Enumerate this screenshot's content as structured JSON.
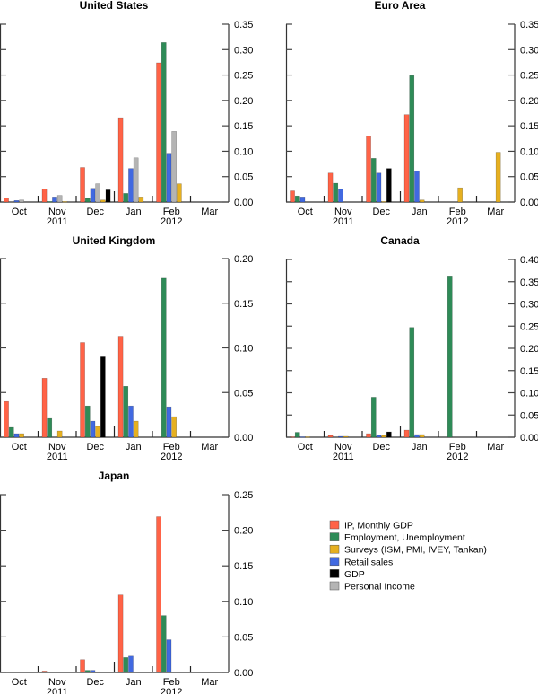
{
  "colors": {
    "ip": "#ff6347",
    "employment": "#2e8b57",
    "surveys": "#e6b020",
    "retail": "#4169e1",
    "gdp": "#000000",
    "income": "#b4b4b4"
  },
  "legend": [
    {
      "key": "ip",
      "label": "IP, Monthly GDP"
    },
    {
      "key": "employment",
      "label": "Employment, Unemployment"
    },
    {
      "key": "surveys",
      "label": "Surveys (ISM, PMI, IVEY, Tankan)"
    },
    {
      "key": "retail",
      "label": "Retail sales"
    },
    {
      "key": "gdp",
      "label": "GDP"
    },
    {
      "key": "income",
      "label": "Personal Income"
    }
  ],
  "chart_data": [
    {
      "type": "bar",
      "title": "United States",
      "categories": [
        "Oct",
        "Nov",
        "Dec",
        "Jan",
        "Feb",
        "Mar"
      ],
      "year_labels": {
        "Nov": "2011",
        "Feb": "2012"
      },
      "ylim": [
        0,
        0.35
      ],
      "yticks": [
        "0.00",
        "0.05",
        "0.10",
        "0.15",
        "0.20",
        "0.25",
        "0.30",
        "0.35"
      ],
      "series": [
        {
          "key": "ip",
          "values": [
            0.008,
            0.026,
            0.068,
            0.166,
            0.274,
            0
          ]
        },
        {
          "key": "employment",
          "values": [
            0,
            0.001,
            0.007,
            0.017,
            0.314,
            0
          ]
        },
        {
          "key": "retail",
          "values": [
            0.003,
            0.01,
            0.027,
            0.066,
            0.096,
            0
          ]
        },
        {
          "key": "income",
          "values": [
            0.004,
            0.013,
            0.036,
            0.087,
            0.139,
            0
          ]
        },
        {
          "key": "surveys",
          "values": [
            0,
            0.001,
            0.004,
            0.01,
            0.036,
            0
          ]
        },
        {
          "key": "gdp",
          "values": [
            0,
            0,
            0.024,
            0,
            0,
            0
          ]
        }
      ]
    },
    {
      "type": "bar",
      "title": "Euro Area",
      "categories": [
        "Oct",
        "Nov",
        "Dec",
        "Jan",
        "Feb",
        "Mar"
      ],
      "year_labels": {
        "Nov": "2011",
        "Feb": "2012"
      },
      "ylim": [
        0,
        0.35
      ],
      "yticks": [
        "0.00",
        "0.05",
        "0.10",
        "0.15",
        "0.20",
        "0.25",
        "0.30",
        "0.35"
      ],
      "series": [
        {
          "key": "ip",
          "values": [
            0.022,
            0.057,
            0.13,
            0.172,
            0,
            0
          ]
        },
        {
          "key": "employment",
          "values": [
            0.012,
            0.037,
            0.086,
            0.249,
            0,
            0
          ]
        },
        {
          "key": "retail",
          "values": [
            0.01,
            0.025,
            0.057,
            0.061,
            0,
            0
          ]
        },
        {
          "key": "surveys",
          "values": [
            0,
            0,
            0.001,
            0.004,
            0.028,
            0.098
          ]
        },
        {
          "key": "gdp",
          "values": [
            0,
            0,
            0.066,
            0,
            0,
            0
          ]
        }
      ]
    },
    {
      "type": "bar",
      "title": "United Kingdom",
      "categories": [
        "Oct",
        "Nov",
        "Dec",
        "Jan",
        "Feb",
        "Mar"
      ],
      "year_labels": {
        "Nov": "2011",
        "Feb": "2012"
      },
      "ylim": [
        0,
        0.2
      ],
      "yticks": [
        "0.00",
        "0.05",
        "0.10",
        "0.15",
        "0.20"
      ],
      "series": [
        {
          "key": "ip",
          "values": [
            0.04,
            0.066,
            0.106,
            0.113,
            0,
            0
          ]
        },
        {
          "key": "employment",
          "values": [
            0.011,
            0.021,
            0.035,
            0.057,
            0.178,
            0
          ]
        },
        {
          "key": "retail",
          "values": [
            0.004,
            0,
            0.018,
            0.035,
            0.034,
            0
          ]
        },
        {
          "key": "surveys",
          "values": [
            0.004,
            0.007,
            0.012,
            0.018,
            0.023,
            0
          ]
        },
        {
          "key": "gdp",
          "values": [
            0,
            0,
            0.09,
            0,
            0,
            0
          ]
        }
      ]
    },
    {
      "type": "bar",
      "title": "Canada",
      "categories": [
        "Oct",
        "Nov",
        "Dec",
        "Jan",
        "Feb",
        "Mar"
      ],
      "year_labels": {
        "Nov": "2011",
        "Feb": "2012"
      },
      "ylim": [
        0,
        0.4
      ],
      "yticks": [
        "0.00",
        "0.05",
        "0.10",
        "0.15",
        "0.20",
        "0.25",
        "0.30",
        "0.35",
        "0.40"
      ],
      "series": [
        {
          "key": "ip",
          "values": [
            0.001,
            0.004,
            0.008,
            0.016,
            0,
            0
          ]
        },
        {
          "key": "employment",
          "values": [
            0.011,
            0,
            0.09,
            0.247,
            0.363,
            0
          ]
        },
        {
          "key": "retail",
          "values": [
            0.001,
            0.002,
            0.004,
            0.006,
            0,
            0
          ]
        },
        {
          "key": "surveys",
          "values": [
            0.001,
            0.002,
            0.004,
            0.006,
            0,
            0
          ]
        },
        {
          "key": "gdp",
          "values": [
            0,
            0,
            0.012,
            0,
            0,
            0
          ]
        }
      ]
    },
    {
      "type": "bar",
      "title": "Japan",
      "categories": [
        "Oct",
        "Nov",
        "Dec",
        "Jan",
        "Feb",
        "Mar"
      ],
      "year_labels": {
        "Nov": "2011",
        "Feb": "2012"
      },
      "ylim": [
        0,
        0.25
      ],
      "yticks": [
        "0.00",
        "0.05",
        "0.10",
        "0.15",
        "0.20",
        "0.25"
      ],
      "series": [
        {
          "key": "ip",
          "values": [
            0,
            0.002,
            0.018,
            0.109,
            0.219,
            0
          ]
        },
        {
          "key": "employment",
          "values": [
            0,
            0,
            0.003,
            0.021,
            0.08,
            0
          ]
        },
        {
          "key": "retail",
          "values": [
            0,
            0,
            0.003,
            0.023,
            0.046,
            0
          ]
        },
        {
          "key": "surveys",
          "values": [
            0,
            0,
            0.001,
            0,
            0,
            0
          ]
        }
      ]
    }
  ]
}
